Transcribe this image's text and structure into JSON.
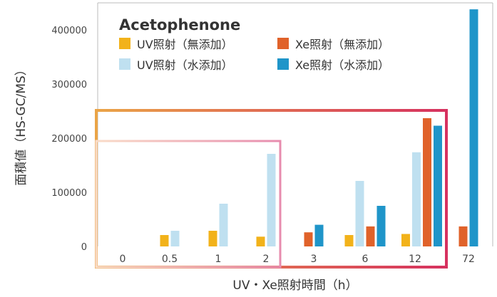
{
  "chart_data": {
    "type": "bar",
    "title": "Acetophenone",
    "xlabel": "UV・Xe照射時間（h）",
    "ylabel": "面積値（HS-GC/MS）",
    "ylim": [
      0,
      450000
    ],
    "yticks": [
      0,
      100000,
      200000,
      300000,
      400000
    ],
    "grid": false,
    "legend_position": "top-left",
    "categories": [
      "0",
      "0.5",
      "1",
      "2",
      "3",
      "6",
      "12",
      "72"
    ],
    "series": [
      {
        "name": "UV照射（無添加）",
        "color": "#f2b21a",
        "values": [
          0,
          21000,
          29000,
          18000,
          null,
          21000,
          23000,
          null
        ]
      },
      {
        "name": "Xe照射（無添加）",
        "color": "#e0622a",
        "values": [
          0,
          null,
          null,
          null,
          26000,
          37000,
          237000,
          37000
        ]
      },
      {
        "name": "UV照射（水添加）",
        "color": "#bfe0f0",
        "values": [
          0,
          29000,
          79000,
          171000,
          null,
          121000,
          174000,
          null
        ]
      },
      {
        "name": "Xe照射（水添加）",
        "color": "#1f95c9",
        "values": [
          0,
          null,
          null,
          null,
          40000,
          75000,
          223000,
          438000
        ]
      }
    ],
    "legend_order": [
      0,
      1,
      2,
      3
    ],
    "highlight_boxes": [
      {
        "categories": [
          "0",
          "2"
        ],
        "gradient": [
          "#f9dcc8",
          "#e78cae"
        ]
      },
      {
        "categories": [
          "0",
          "12"
        ],
        "gradient": [
          "#eaa447",
          "#d6315f"
        ]
      }
    ]
  }
}
